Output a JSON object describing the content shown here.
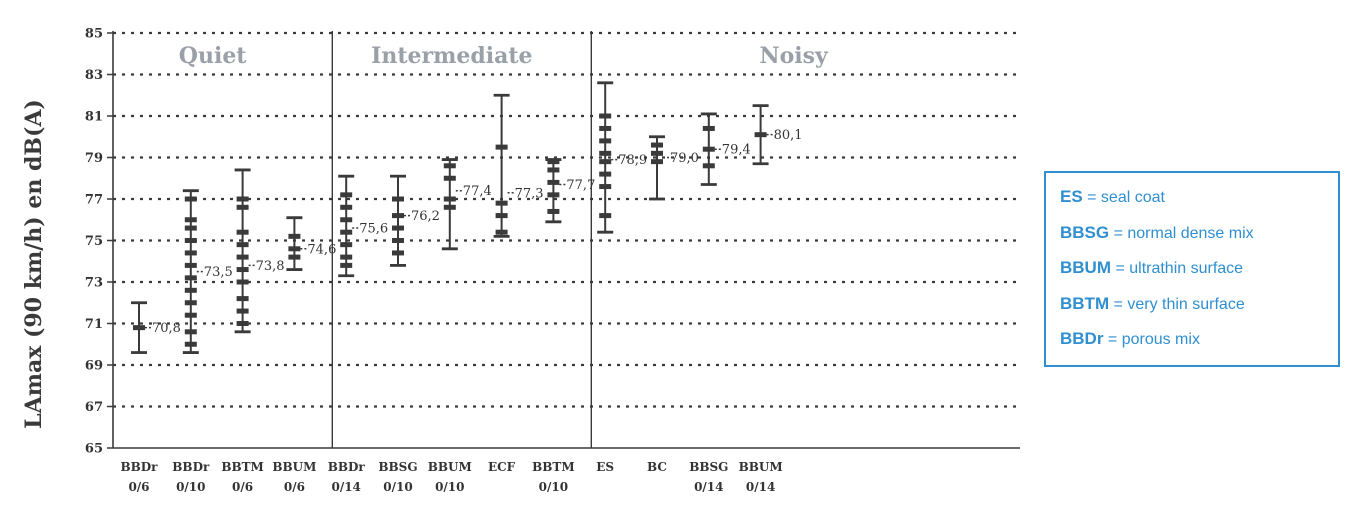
{
  "chart_data": {
    "type": "errorbar",
    "ylabel": "LAmax (90 km/h) en dB(A)",
    "ylim": [
      65,
      85
    ],
    "yticks": [
      "65",
      "67",
      "69",
      "71",
      "73",
      "75",
      "77",
      "79",
      "81",
      "83",
      "85"
    ],
    "grid": true,
    "groups": [
      {
        "label": "Quiet",
        "start": 0,
        "end": 3
      },
      {
        "label": "Intermediate",
        "start": 4,
        "end": 8
      },
      {
        "label": "Noisy",
        "start": 9,
        "end": 12
      }
    ],
    "categories": [
      {
        "line1": "BBDr",
        "line2": "0/6"
      },
      {
        "line1": "BBDr",
        "line2": "0/10"
      },
      {
        "line1": "BBTM",
        "line2": "0/6"
      },
      {
        "line1": "BBUM",
        "line2": "0/6"
      },
      {
        "line1": "BBDr",
        "line2": "0/14"
      },
      {
        "line1": "BBSG",
        "line2": "0/10"
      },
      {
        "line1": "BBUM",
        "line2": "0/10"
      },
      {
        "line1": "ECF",
        "line2": ""
      },
      {
        "line1": "BBTM",
        "line2": "0/10"
      },
      {
        "line1": "ES",
        "line2": ""
      },
      {
        "line1": "BC",
        "line2": ""
      },
      {
        "line1": "BBSG",
        "line2": "0/14"
      },
      {
        "line1": "BBUM",
        "line2": "0/14"
      }
    ],
    "points": [
      {
        "mean": 70.8,
        "label": "70,8",
        "min": 69.6,
        "max": 72.0,
        "ticks": [
          70.8
        ]
      },
      {
        "mean": 73.5,
        "label": "73,5",
        "min": 69.6,
        "max": 77.4,
        "ticks": [
          70.0,
          70.6,
          71.4,
          72.0,
          72.6,
          73.2,
          73.8,
          74.4,
          75.0,
          75.6,
          76.0,
          77.0
        ]
      },
      {
        "mean": 73.8,
        "label": "73,8",
        "min": 70.6,
        "max": 78.4,
        "ticks": [
          71.0,
          71.6,
          72.2,
          73.0,
          73.6,
          74.2,
          74.8,
          75.4,
          76.6,
          77.0
        ]
      },
      {
        "mean": 74.6,
        "label": "74,6",
        "min": 73.6,
        "max": 76.1,
        "ticks": [
          74.2,
          74.6,
          75.2
        ]
      },
      {
        "mean": 75.6,
        "label": "75,6",
        "min": 73.3,
        "max": 78.1,
        "ticks": [
          73.8,
          74.2,
          74.8,
          75.4,
          76.0,
          76.6,
          77.2
        ]
      },
      {
        "mean": 76.2,
        "label": "76,2",
        "min": 73.8,
        "max": 78.1,
        "ticks": [
          74.4,
          75.0,
          75.6,
          76.2,
          77.0
        ]
      },
      {
        "mean": 77.4,
        "label": "77,4",
        "min": 74.6,
        "max": 78.9,
        "ticks": [
          76.6,
          77.0,
          78.0,
          78.6
        ]
      },
      {
        "mean": 77.3,
        "label": "77,3",
        "min": 75.2,
        "max": 82.0,
        "ticks": [
          75.4,
          76.2,
          76.8,
          79.5
        ]
      },
      {
        "mean": 77.7,
        "label": "77,7",
        "min": 75.9,
        "max": 78.9,
        "ticks": [
          76.4,
          77.2,
          77.8,
          78.4,
          78.8
        ]
      },
      {
        "mean": 78.9,
        "label": "78,9",
        "min": 75.4,
        "max": 82.6,
        "ticks": [
          76.2,
          77.6,
          78.2,
          78.8,
          79.2,
          79.8,
          80.4,
          81.0
        ]
      },
      {
        "mean": 79.0,
        "label": "79,0",
        "min": 77.0,
        "max": 80.0,
        "ticks": [
          78.8,
          79.2,
          79.6
        ]
      },
      {
        "mean": 79.4,
        "label": "79,4",
        "min": 77.7,
        "max": 81.1,
        "ticks": [
          78.6,
          79.4,
          80.4
        ]
      },
      {
        "mean": 80.1,
        "label": "80,1",
        "min": 78.7,
        "max": 81.5,
        "ticks": [
          80.1
        ]
      }
    ]
  },
  "legend": {
    "items": [
      {
        "abbr": "ES",
        "sep": " = ",
        "desc": "seal coat"
      },
      {
        "abbr": "BBSG",
        "sep": " = ",
        "desc": "normal dense mix"
      },
      {
        "abbr": "BBUM",
        "sep": " = ",
        "desc": "ultrathin surface"
      },
      {
        "abbr": "BBTM",
        "sep": " = ",
        "desc": "very thin surface"
      },
      {
        "abbr": "BBDr",
        "sep": " = ",
        "desc": "porous mix"
      }
    ],
    "color": "#2f8fd0"
  }
}
